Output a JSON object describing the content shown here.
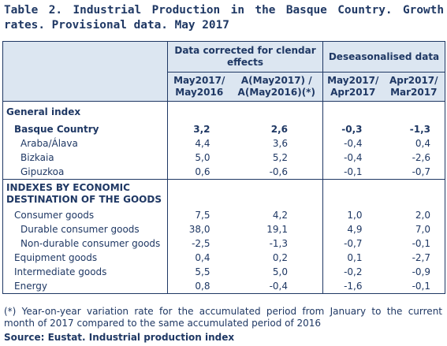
{
  "title": "Table 2. Industrial Production in the Basque Country. Growth rates. Provisional data. May 2017",
  "header": {
    "group1": "Data corrected for clendar effects",
    "group2": "Deseasonalised data",
    "col1": "May2017/ May2016",
    "col2": "A(May2017) / A(May2016)(*)",
    "col3": "May2017/ Apr2017",
    "col4": "Apr2017/ Mar2017"
  },
  "sections": {
    "general": "General index",
    "indexes": "INDEXES BY ECONOMIC DESTINATION OF THE GOODS"
  },
  "rows": {
    "basque": {
      "label": "Basque Country",
      "v1": "3,2",
      "v2": "2,6",
      "v3": "-0,3",
      "v4": "-1,3"
    },
    "araba": {
      "label": "Araba/Álava",
      "v1": "4,4",
      "v2": "3,6",
      "v3": "-0,4",
      "v4": "0,4"
    },
    "bizkaia": {
      "label": "Bizkaia",
      "v1": "5,0",
      "v2": "5,2",
      "v3": "-0,4",
      "v4": "-2,6"
    },
    "gipuzkoa": {
      "label": "Gipuzkoa",
      "v1": "0,6",
      "v2": "-0,6",
      "v3": "-0,1",
      "v4": "-0,7"
    },
    "consumer": {
      "label": "Consumer goods",
      "v1": "7,5",
      "v2": "4,2",
      "v3": "1,0",
      "v4": "2,0"
    },
    "durable": {
      "label": "Durable consumer goods",
      "v1": "38,0",
      "v2": "19,1",
      "v3": "4,9",
      "v4": "7,0"
    },
    "nondurable": {
      "label": "Non-durable consumer goods",
      "v1": "-2,5",
      "v2": "-1,3",
      "v3": "-0,7",
      "v4": "-0,1"
    },
    "equipment": {
      "label": "Equipment goods",
      "v1": "0,4",
      "v2": "0,2",
      "v3": "0,1",
      "v4": "-2,7"
    },
    "intermediate": {
      "label": "Intermediate goods",
      "v1": "5,5",
      "v2": "5,0",
      "v3": "-0,2",
      "v4": "-0,9"
    },
    "energy": {
      "label": "Energy",
      "v1": "0,8",
      "v2": "-0,4",
      "v3": "-1,6",
      "v4": "-0,1"
    }
  },
  "note": "(*) Year-on-year variation rate for the accumulated period from January to the current month of 2017 compared to the same accumulated period of 2016",
  "source": "Source: Eustat. Industrial production index"
}
